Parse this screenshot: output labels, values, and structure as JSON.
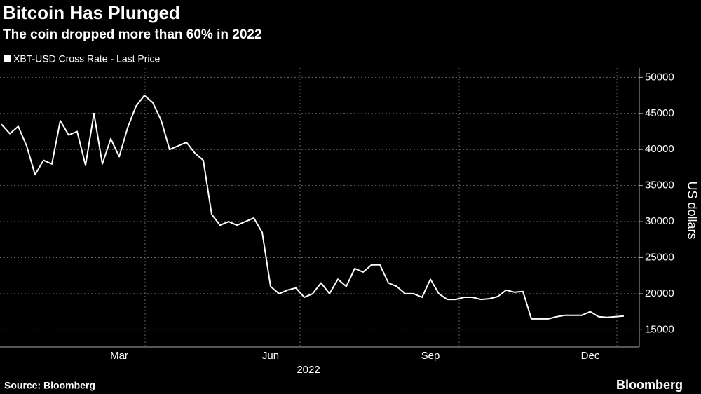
{
  "chart_data": {
    "type": "line",
    "title": "Bitcoin Has Plunged",
    "subtitle": "The coin dropped more than 60% in 2022",
    "x_label": "2022",
    "y_label": "US dollars",
    "source": "Source: Bloomberg",
    "branding": "Bloomberg",
    "categories": [
      null,
      null,
      null,
      null,
      null,
      null,
      null,
      null,
      null,
      null,
      null,
      null,
      null,
      null,
      "Mar",
      null,
      null,
      null,
      null,
      null,
      null,
      null,
      null,
      null,
      null,
      null,
      null,
      null,
      null,
      null,
      null,
      null,
      "Jun",
      null,
      null,
      null,
      null,
      null,
      null,
      null,
      null,
      null,
      null,
      null,
      null,
      null,
      null,
      null,
      null,
      null,
      null,
      "Sep",
      null,
      null,
      null,
      null,
      null,
      null,
      null,
      null,
      null,
      null,
      null,
      null,
      null,
      null,
      null,
      null,
      null,
      null,
      "Dec",
      null,
      null,
      null,
      null
    ],
    "series": [
      {
        "name": "XBT-USD Cross Rate - Last Price",
        "color": "#ffffff",
        "values": [
          43500,
          42200,
          43200,
          40500,
          36500,
          38500,
          38000,
          44000,
          42000,
          42500,
          37800,
          45000,
          38000,
          41500,
          39000,
          43000,
          46000,
          47500,
          46500,
          44000,
          40000,
          40500,
          41000,
          39500,
          38500,
          31000,
          29500,
          30000,
          29500,
          30000,
          30500,
          28500,
          21000,
          20000,
          20500,
          20800,
          19500,
          20000,
          21500,
          20000,
          22000,
          21000,
          23500,
          23000,
          24000,
          24000,
          21500,
          21000,
          20000,
          20000,
          19500,
          22000,
          20000,
          19200,
          19200,
          19500,
          19500,
          19200,
          19300,
          19600,
          20500,
          20200,
          20300,
          16500,
          16500,
          16500,
          16800,
          17000,
          17000,
          17000,
          17500,
          16800,
          16700,
          16800,
          16900
        ]
      }
    ],
    "ylim": [
      12600,
      51300
    ],
    "yticks": [
      15000,
      20000,
      25000,
      30000,
      35000,
      40000,
      45000,
      50000
    ],
    "grid": true
  }
}
